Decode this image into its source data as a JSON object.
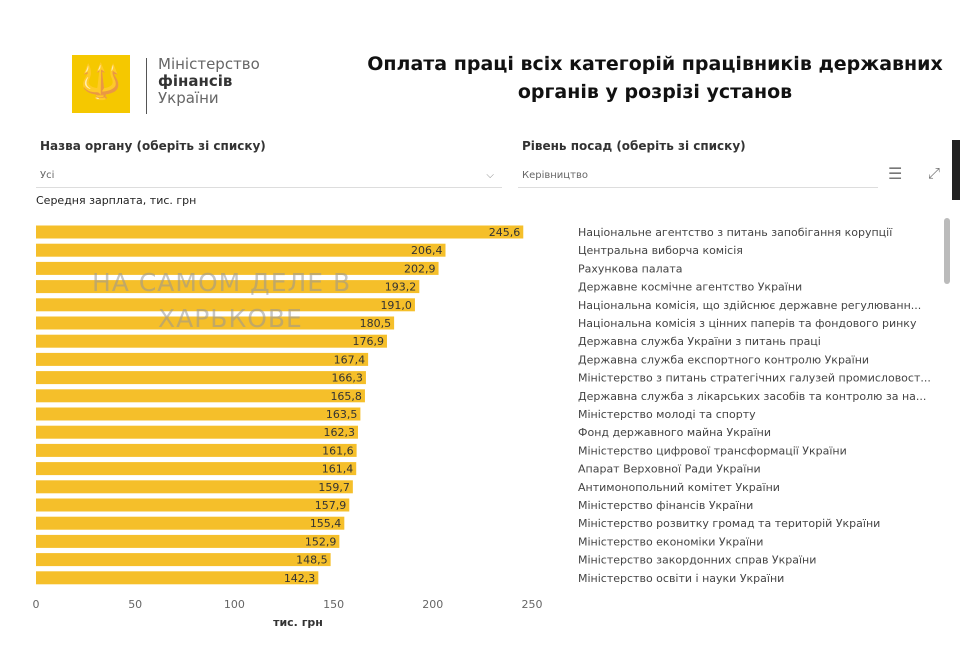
{
  "logo": {
    "line1": "Міністерство",
    "line2": "фінансів",
    "line3": "України"
  },
  "title_line1": "Оплата праці всіх категорій працівників державних",
  "title_line2": "органів у розрізі установ",
  "filters": [
    {
      "label": "Назва органу (оберіть зі списку)",
      "value": "Усі"
    },
    {
      "label": "Рівень посад (оберіть зі списку)",
      "value": "Керівництво"
    }
  ],
  "watermark": {
    "line1": "НА САМОМ ДЕЛЕ В",
    "line2": "ХАРЬКОВЕ"
  },
  "colors": {
    "bar": "#f5bf2a"
  },
  "chart_data": {
    "type": "bar",
    "orientation": "horizontal",
    "ylabel": "Середня зарплата, тис. грн",
    "xlabel": "тис. грн",
    "xlim": [
      0,
      250
    ],
    "xticks": [
      "0",
      "50",
      "100",
      "150",
      "200",
      "250"
    ],
    "categories": [
      "Національне агентство з питань запобігання корупції",
      "Центральна виборча комісія",
      "Рахункова палата",
      "Державне космічне агентство України",
      "Національна комісія, що здійснює державне регулюванн...",
      "Національна комісія з цінних паперів та фондового ринку",
      "Державна служба України з питань праці",
      "Державна служба експортного контролю України",
      "Міністерство з питань стратегічних галузей промисловост...",
      "Державна служба з лікарських засобів та контролю за на...",
      "Міністерство молоді та спорту",
      "Фонд державного майна України",
      "Міністерство цифрової трансформації України",
      "Апарат Верховної Ради України",
      "Антимонопольний комітет України",
      "Міністерство фінансів України",
      "Міністерство розвитку громад та територій України",
      "Міністерство економіки України",
      "Міністерство закордонних справ України",
      "Міністерство освіти і науки України"
    ],
    "values": [
      245.6,
      206.4,
      202.9,
      193.2,
      191.0,
      180.5,
      176.9,
      167.4,
      166.3,
      165.8,
      163.5,
      162.3,
      161.6,
      161.4,
      159.7,
      157.9,
      155.4,
      152.9,
      148.5,
      142.3
    ],
    "labels": [
      "245,6",
      "206,4",
      "202,9",
      "193,2",
      "191,0",
      "180,5",
      "176,9",
      "167,4",
      "166,3",
      "165,8",
      "163,5",
      "162,3",
      "161,6",
      "161,4",
      "159,7",
      "157,9",
      "155,4",
      "152,9",
      "148,5",
      "142,3"
    ]
  }
}
